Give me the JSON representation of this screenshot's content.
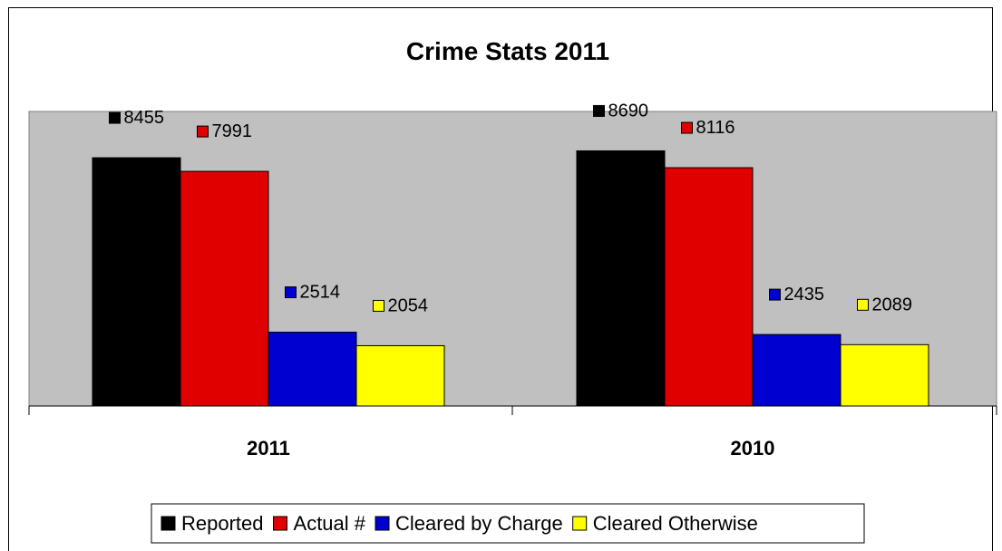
{
  "chart_data": {
    "type": "bar",
    "title": "Crime Stats 2011",
    "categories": [
      "2011",
      "2010"
    ],
    "series": [
      {
        "name": "Reported",
        "color": "#000000",
        "values": [
          8455,
          8690
        ]
      },
      {
        "name": "Actual #",
        "color": "#e00000",
        "values": [
          7991,
          8116
        ]
      },
      {
        "name": "Cleared by Charge",
        "color": "#0000d0",
        "values": [
          2514,
          2435
        ]
      },
      {
        "name": "Cleared Otherwise",
        "color": "#ffff00",
        "values": [
          2054,
          2089
        ]
      }
    ],
    "ylim": [
      0,
      10000
    ],
    "plot_background": "#c0c0c0",
    "grid": false,
    "legend_position": "bottom",
    "data_labels": true
  }
}
